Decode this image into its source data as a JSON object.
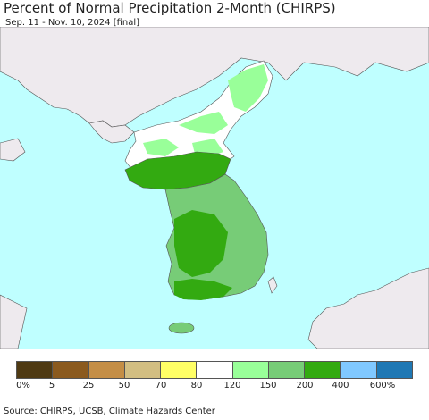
{
  "title": "Percent of Normal Precipitation 2-Month (CHIRPS)",
  "subtitle": "Sep. 11 - Nov. 10, 2024 [final]",
  "legend": {
    "colors": [
      "#4f3a13",
      "#8b5a1e",
      "#c48e46",
      "#d2be82",
      "#ffff66",
      "#ffffff",
      "#99ff99",
      "#77cc77",
      "#33aa11",
      "#80c8ff",
      "#1f78b4"
    ],
    "labels": [
      "0%",
      "5",
      "25",
      "50",
      "70",
      "80",
      "120",
      "150",
      "200",
      "400",
      "600%"
    ]
  },
  "source": "Source: CHIRPS, UCSB, Climate Hazards Center",
  "map": {
    "ocean_color": "#bfffff",
    "land_nodata_color": "#eeeaee",
    "north_color_mix": [
      "#ffffff",
      "#99ff99"
    ],
    "south_color": "#77cc77",
    "south_coast_color": "#33aa11"
  }
}
